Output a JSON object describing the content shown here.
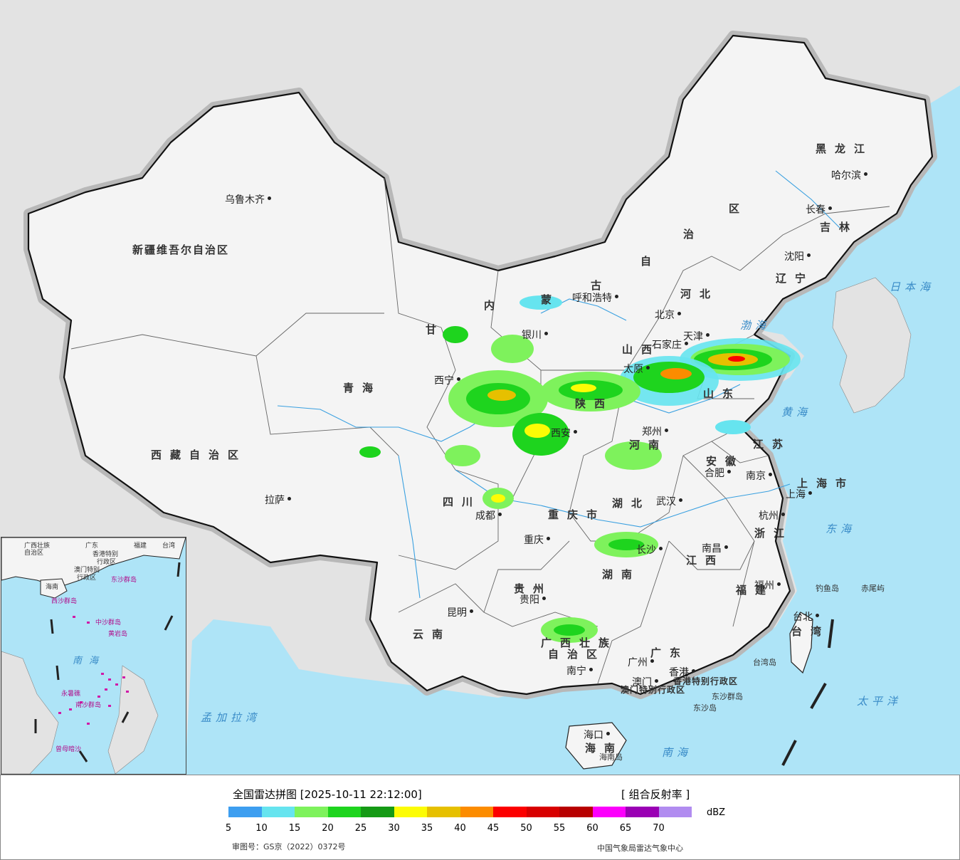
{
  "footer": {
    "title": "全国雷达拼图 [2025-10-11 22:12:00]",
    "product": "[ 组合反射率 ]",
    "unit": "dBZ",
    "approval_number": "审图号：GS京（2022）0372号",
    "agency": "中国气象局雷达气象中心"
  },
  "legend": {
    "colors": [
      "#3d9ef0",
      "#66e4ef",
      "#7ef25c",
      "#1ed41e",
      "#159a15",
      "#fcfc05",
      "#e6c000",
      "#fc8c00",
      "#fc0000",
      "#d80000",
      "#b80000",
      "#fc00fc",
      "#9a00b4",
      "#b18cf0"
    ],
    "ticks": [
      "5",
      "10",
      "15",
      "20",
      "25",
      "30",
      "35",
      "40",
      "45",
      "50",
      "55",
      "60",
      "65",
      "70"
    ]
  },
  "cities": [
    {
      "name": "乌鲁木齐"
    },
    {
      "name": "拉萨"
    },
    {
      "name": "西宁"
    },
    {
      "name": "银川"
    },
    {
      "name": "呼和浩特"
    },
    {
      "name": "北京"
    },
    {
      "name": "天津"
    },
    {
      "name": "石家庄"
    },
    {
      "name": "太原"
    },
    {
      "name": "西安"
    },
    {
      "name": "郑州"
    },
    {
      "name": "成都"
    },
    {
      "name": "重庆"
    },
    {
      "name": "武汉"
    },
    {
      "name": "合肥"
    },
    {
      "name": "南京"
    },
    {
      "name": "上海"
    },
    {
      "name": "杭州"
    },
    {
      "name": "南昌"
    },
    {
      "name": "长沙"
    },
    {
      "name": "贵阳"
    },
    {
      "name": "昆明"
    },
    {
      "name": "南宁"
    },
    {
      "name": "广州"
    },
    {
      "name": "澳门"
    },
    {
      "name": "香港"
    },
    {
      "name": "福州"
    },
    {
      "name": "台北"
    },
    {
      "name": "海口"
    },
    {
      "name": "沈阳"
    },
    {
      "name": "长春"
    },
    {
      "name": "哈尔滨"
    }
  ],
  "provinces": [
    {
      "name": "新疆维吾尔自治区"
    },
    {
      "name": "西藏自治区"
    },
    {
      "name": "青海"
    },
    {
      "name": "四川"
    },
    {
      "name": "云南"
    },
    {
      "name": "贵州"
    },
    {
      "name": "广西壮族"
    },
    {
      "name": "自治区"
    },
    {
      "name": "广东"
    },
    {
      "name": "湖南"
    },
    {
      "name": "湖北"
    },
    {
      "name": "江西"
    },
    {
      "name": "福建"
    },
    {
      "name": "浙江"
    },
    {
      "name": "安徽"
    },
    {
      "name": "江苏"
    },
    {
      "name": "山东"
    },
    {
      "name": "河南"
    },
    {
      "name": "陕西"
    },
    {
      "name": "山西"
    },
    {
      "name": "河北"
    },
    {
      "name": "辽宁"
    },
    {
      "name": "吉林"
    },
    {
      "name": "黑龙江"
    },
    {
      "name": "上海市"
    },
    {
      "name": "重庆市"
    },
    {
      "name": "台湾"
    },
    {
      "name": "海南"
    },
    {
      "name": "甘"
    },
    {
      "name": "内"
    },
    {
      "name": "蒙"
    },
    {
      "name": "古"
    },
    {
      "name": "自"
    },
    {
      "name": "治"
    },
    {
      "name": "区"
    },
    {
      "name": "香港特别行政区"
    },
    {
      "name": "澳门特别行政区"
    }
  ],
  "waters": [
    {
      "name": "日本海"
    },
    {
      "name": "渤海"
    },
    {
      "name": "黄海"
    },
    {
      "name": "东海"
    },
    {
      "name": "太平洋"
    },
    {
      "name": "南海"
    },
    {
      "name": "孟加拉湾"
    }
  ],
  "islands": [
    {
      "name": "钓鱼岛"
    },
    {
      "name": "赤尾屿"
    },
    {
      "name": "东沙群岛"
    },
    {
      "name": "东沙岛"
    },
    {
      "name": "台湾岛"
    },
    {
      "name": "海南岛"
    }
  ],
  "inset": {
    "labels": [
      "广西壮族",
      "自治区",
      "广东",
      "福建",
      "台湾",
      "香港特别",
      "行政区",
      "澳门特别",
      "行政区",
      "东沙群岛",
      "海南",
      "西沙群岛",
      "中沙群岛",
      "黄岩岛",
      "南海",
      "南沙群岛",
      "永暑礁",
      "曾母暗沙"
    ]
  }
}
